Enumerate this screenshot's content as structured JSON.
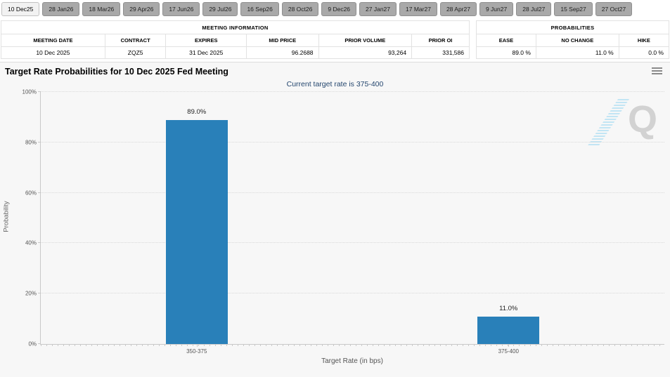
{
  "tab_bar": {
    "tabs": [
      {
        "label": "10 Dec25",
        "active": true
      },
      {
        "label": "28 Jan26",
        "active": false
      },
      {
        "label": "18 Mar26",
        "active": false
      },
      {
        "label": "29 Apr26",
        "active": false
      },
      {
        "label": "17 Jun26",
        "active": false
      },
      {
        "label": "29 Jul26",
        "active": false
      },
      {
        "label": "16 Sep26",
        "active": false
      },
      {
        "label": "28 Oct26",
        "active": false
      },
      {
        "label": "9 Dec26",
        "active": false
      },
      {
        "label": "27 Jan27",
        "active": false
      },
      {
        "label": "17 Mar27",
        "active": false
      },
      {
        "label": "28 Apr27",
        "active": false
      },
      {
        "label": "9 Jun27",
        "active": false
      },
      {
        "label": "28 Jul27",
        "active": false
      },
      {
        "label": "15 Sep27",
        "active": false
      },
      {
        "label": "27 Oct27",
        "active": false
      }
    ]
  },
  "meeting_info": {
    "title": "MEETING INFORMATION",
    "columns": [
      "MEETING DATE",
      "CONTRACT",
      "EXPIRES",
      "MID PRICE",
      "PRIOR VOLUME",
      "PRIOR OI"
    ],
    "values": [
      "10 Dec 2025",
      "ZQZ5",
      "31 Dec 2025",
      "96.2688",
      "93,264",
      "331,586"
    ]
  },
  "probabilities": {
    "title": "PROBABILITIES",
    "columns": [
      "EASE",
      "NO CHANGE",
      "HIKE"
    ],
    "values": [
      "89.0 %",
      "11.0 %",
      "0.0 %"
    ]
  },
  "chart": {
    "menu_icon": "hamburger-menu-icon"
  },
  "chart_data": {
    "type": "bar",
    "title": "Target Rate Probabilities for 10 Dec 2025 Fed Meeting",
    "subtitle": "Current target rate is 375-400",
    "categories": [
      "350-375",
      "375-400"
    ],
    "values": [
      89.0,
      11.0
    ],
    "value_labels": [
      "89.0%",
      "11.0%"
    ],
    "xlabel": "Target Rate (in bps)",
    "ylabel": "Probability",
    "ylim": [
      0,
      100
    ],
    "yticks": [
      0,
      20,
      40,
      60,
      80,
      100
    ],
    "ytick_labels": [
      "0%",
      "20%",
      "40%",
      "60%",
      "80%",
      "100%"
    ],
    "grid": true,
    "legend": false,
    "bar_color": "#2980b9"
  },
  "watermark": {
    "letter": "Q"
  }
}
